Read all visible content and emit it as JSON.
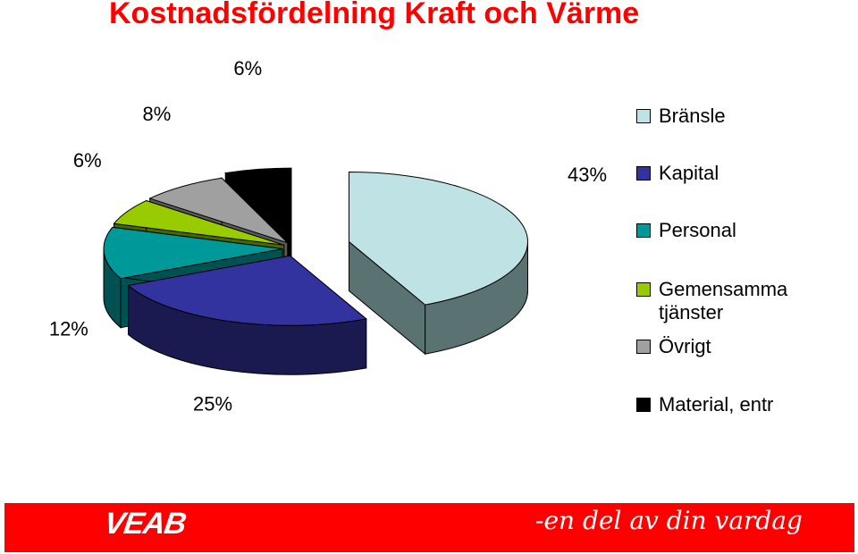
{
  "title": "Kostnadsfördelning Kraft och Värme",
  "chart_data": {
    "type": "pie",
    "categories": [
      "Bränsle",
      "Kapital",
      "Personal",
      "Gemensamma\ntjänster",
      "Övrigt",
      "Material, entr"
    ],
    "values": [
      43,
      25,
      12,
      6,
      8,
      6
    ],
    "data_labels": [
      "43%",
      "25%",
      "12%",
      "6%",
      "8%",
      "6%"
    ],
    "colors": [
      "#bfe3e4",
      "#3333a0",
      "#009999",
      "#99cc00",
      "#a0a0a0",
      "#000000"
    ],
    "side_colors": [
      "#5a7272",
      "#1a1a50",
      "#005252",
      "#4a6600",
      "#5a5a5a",
      "#000000"
    ],
    "legend_position": "right",
    "style": "3d-exploded"
  },
  "footer": {
    "logo": "VEAB",
    "slogan": "-en del av din vardag",
    "background": "#ff0000"
  }
}
